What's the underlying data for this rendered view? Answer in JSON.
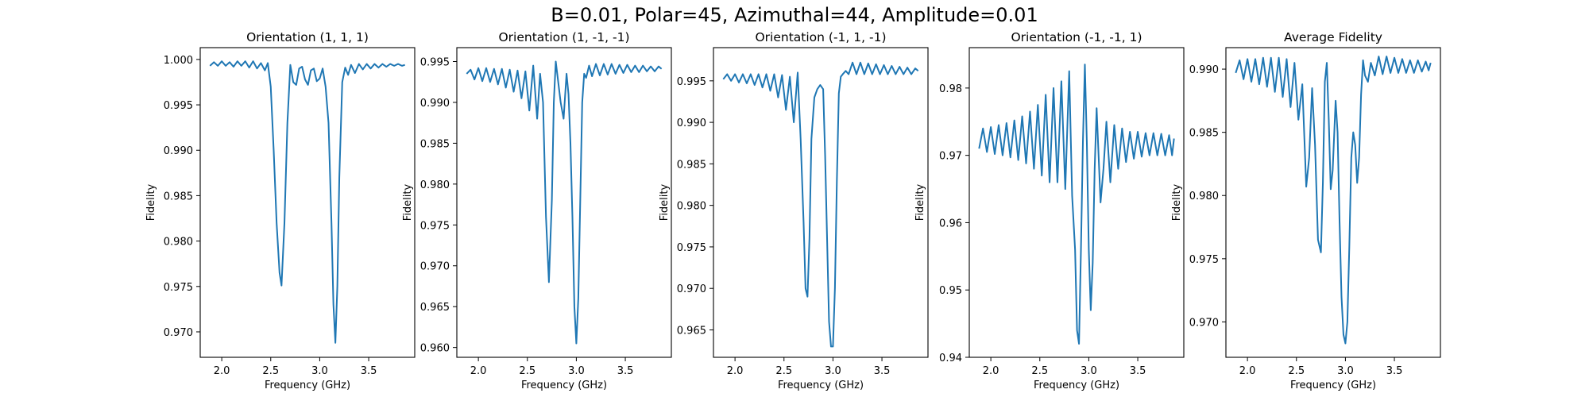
{
  "figure": {
    "suptitle": "B=0.01, Polar=45, Azimuthal=44, Amplitude=0.01"
  },
  "colors": {
    "line": "#1f77b4",
    "axes": "#000000"
  },
  "chart_data": [
    {
      "type": "line",
      "title": "Orientation (1, 1, 1)",
      "xlabel": "Frequency (GHz)",
      "ylabel": "Fidelity",
      "xlim": [
        1.78,
        3.97
      ],
      "ylim": [
        0.9672,
        1.0013
      ],
      "xticks": [
        2.0,
        2.5,
        3.0,
        3.5
      ],
      "xtick_labels": [
        "2.0",
        "2.5",
        "3.0",
        "3.5"
      ],
      "yticks": [
        0.97,
        0.975,
        0.98,
        0.985,
        0.99,
        0.995,
        1.0
      ],
      "ytick_labels": [
        "0.970",
        "0.975",
        "0.980",
        "0.985",
        "0.990",
        "0.995",
        "1.000"
      ],
      "grid": false,
      "series": [
        {
          "x": [
            1.88,
            1.92,
            1.96,
            2.0,
            2.04,
            2.08,
            2.12,
            2.16,
            2.2,
            2.24,
            2.28,
            2.32,
            2.36,
            2.4,
            2.44,
            2.47,
            2.5,
            2.53,
            2.56,
            2.59,
            2.61,
            2.64,
            2.67,
            2.7,
            2.73,
            2.76,
            2.79,
            2.82,
            2.85,
            2.88,
            2.91,
            2.94,
            2.97,
            3.0,
            3.03,
            3.06,
            3.09,
            3.12,
            3.14,
            3.16,
            3.18,
            3.2,
            3.23,
            3.26,
            3.29,
            3.32,
            3.36,
            3.4,
            3.44,
            3.48,
            3.52,
            3.56,
            3.6,
            3.64,
            3.68,
            3.72,
            3.76,
            3.8,
            3.84,
            3.87
          ],
          "y": [
            0.9993,
            0.9997,
            0.9993,
            0.9998,
            0.9993,
            0.9997,
            0.9992,
            0.9998,
            0.9993,
            0.9998,
            0.9991,
            0.9998,
            0.999,
            0.9996,
            0.9988,
            0.9996,
            0.997,
            0.99,
            0.982,
            0.9765,
            0.9751,
            0.982,
            0.993,
            0.9994,
            0.9975,
            0.9972,
            0.999,
            0.9992,
            0.9978,
            0.9972,
            0.9988,
            0.999,
            0.9976,
            0.9979,
            0.999,
            0.997,
            0.993,
            0.982,
            0.973,
            0.9688,
            0.975,
            0.987,
            0.9975,
            0.9991,
            0.9983,
            0.9994,
            0.9985,
            0.9995,
            0.9989,
            0.9995,
            0.999,
            0.9995,
            0.9991,
            0.9995,
            0.9992,
            0.9995,
            0.9993,
            0.9995,
            0.9993,
            0.9994
          ]
        }
      ]
    },
    {
      "type": "line",
      "title": "Orientation (1, -1, -1)",
      "xlabel": "Frequency (GHz)",
      "ylabel": "Fidelity",
      "xlim": [
        1.78,
        3.97
      ],
      "ylim": [
        0.9588,
        0.9967
      ],
      "xticks": [
        2.0,
        2.5,
        3.0,
        3.5
      ],
      "xtick_labels": [
        "2.0",
        "2.5",
        "3.0",
        "3.5"
      ],
      "yticks": [
        0.96,
        0.965,
        0.97,
        0.975,
        0.98,
        0.985,
        0.99,
        0.995
      ],
      "ytick_labels": [
        "0.960",
        "0.965",
        "0.970",
        "0.975",
        "0.980",
        "0.985",
        "0.990",
        "0.995"
      ],
      "grid": false,
      "series": [
        {
          "x": [
            1.88,
            1.92,
            1.96,
            2.0,
            2.04,
            2.08,
            2.12,
            2.16,
            2.2,
            2.24,
            2.28,
            2.32,
            2.36,
            2.4,
            2.44,
            2.48,
            2.52,
            2.56,
            2.6,
            2.63,
            2.66,
            2.69,
            2.72,
            2.75,
            2.77,
            2.79,
            2.81,
            2.84,
            2.87,
            2.9,
            2.92,
            2.94,
            2.96,
            2.98,
            3.0,
            3.02,
            3.04,
            3.06,
            3.08,
            3.1,
            3.13,
            3.16,
            3.2,
            3.24,
            3.28,
            3.32,
            3.36,
            3.4,
            3.44,
            3.48,
            3.52,
            3.56,
            3.6,
            3.64,
            3.68,
            3.72,
            3.76,
            3.8,
            3.84,
            3.87
          ],
          "y": [
            0.9935,
            0.994,
            0.9928,
            0.9942,
            0.9926,
            0.9942,
            0.9925,
            0.9941,
            0.9922,
            0.9941,
            0.9918,
            0.994,
            0.9913,
            0.9939,
            0.9905,
            0.9938,
            0.989,
            0.9945,
            0.988,
            0.9935,
            0.99,
            0.976,
            0.968,
            0.978,
            0.99,
            0.995,
            0.993,
            0.99,
            0.988,
            0.9935,
            0.991,
            0.985,
            0.976,
            0.965,
            0.9605,
            0.966,
            0.978,
            0.99,
            0.9935,
            0.993,
            0.9945,
            0.9932,
            0.9947,
            0.9933,
            0.9947,
            0.9934,
            0.9947,
            0.9935,
            0.9946,
            0.9936,
            0.9946,
            0.9937,
            0.9945,
            0.9937,
            0.9945,
            0.9938,
            0.9944,
            0.9938,
            0.9944,
            0.9941
          ]
        }
      ]
    },
    {
      "type": "line",
      "title": "Orientation (-1, 1, -1)",
      "xlabel": "Frequency (GHz)",
      "ylabel": "Fidelity",
      "xlim": [
        1.78,
        3.97
      ],
      "ylim": [
        0.9617,
        0.999
      ],
      "xticks": [
        2.0,
        2.5,
        3.0,
        3.5
      ],
      "xtick_labels": [
        "2.0",
        "2.5",
        "3.0",
        "3.5"
      ],
      "yticks": [
        0.965,
        0.97,
        0.975,
        0.98,
        0.985,
        0.99,
        0.995
      ],
      "ytick_labels": [
        "0.965",
        "0.970",
        "0.975",
        "0.980",
        "0.985",
        "0.990",
        "0.995"
      ],
      "grid": false,
      "series": [
        {
          "x": [
            1.88,
            1.92,
            1.96,
            2.0,
            2.04,
            2.08,
            2.12,
            2.16,
            2.2,
            2.24,
            2.28,
            2.32,
            2.36,
            2.4,
            2.44,
            2.48,
            2.52,
            2.56,
            2.6,
            2.64,
            2.67,
            2.7,
            2.72,
            2.74,
            2.76,
            2.78,
            2.81,
            2.84,
            2.87,
            2.9,
            2.92,
            2.94,
            2.96,
            2.98,
            3.0,
            3.02,
            3.04,
            3.06,
            3.08,
            3.1,
            3.13,
            3.16,
            3.2,
            3.24,
            3.28,
            3.32,
            3.36,
            3.4,
            3.44,
            3.48,
            3.52,
            3.56,
            3.6,
            3.64,
            3.68,
            3.72,
            3.76,
            3.8,
            3.84,
            3.87
          ],
          "y": [
            0.9952,
            0.9958,
            0.995,
            0.9958,
            0.9948,
            0.9958,
            0.9947,
            0.9958,
            0.9945,
            0.9958,
            0.9942,
            0.9958,
            0.9938,
            0.9958,
            0.993,
            0.9957,
            0.9915,
            0.9955,
            0.99,
            0.996,
            0.988,
            0.978,
            0.97,
            0.969,
            0.976,
            0.988,
            0.993,
            0.994,
            0.9945,
            0.994,
            0.986,
            0.976,
            0.966,
            0.963,
            0.963,
            0.97,
            0.983,
            0.9935,
            0.9955,
            0.9958,
            0.9962,
            0.9958,
            0.9972,
            0.9958,
            0.9972,
            0.9958,
            0.9971,
            0.9958,
            0.997,
            0.9958,
            0.9969,
            0.9958,
            0.9968,
            0.9958,
            0.9967,
            0.9958,
            0.9966,
            0.9958,
            0.9965,
            0.9962
          ]
        }
      ]
    },
    {
      "type": "line",
      "title": "Orientation (-1, -1, 1)",
      "xlabel": "Frequency (GHz)",
      "ylabel": "Fidelity",
      "xlim": [
        1.78,
        3.97
      ],
      "ylim": [
        0.94,
        0.986
      ],
      "xticks": [
        2.0,
        2.5,
        3.0,
        3.5
      ],
      "xtick_labels": [
        "2.0",
        "2.5",
        "3.0",
        "3.5"
      ],
      "yticks": [
        0.94,
        0.95,
        0.96,
        0.97,
        0.98
      ],
      "ytick_labels": [
        "0.94",
        "0.95",
        "0.96",
        "0.97",
        "0.98"
      ],
      "grid": false,
      "series": [
        {
          "x": [
            1.88,
            1.92,
            1.96,
            2.0,
            2.04,
            2.08,
            2.12,
            2.16,
            2.2,
            2.24,
            2.28,
            2.32,
            2.36,
            2.4,
            2.44,
            2.48,
            2.52,
            2.56,
            2.6,
            2.64,
            2.68,
            2.72,
            2.76,
            2.8,
            2.83,
            2.86,
            2.88,
            2.9,
            2.92,
            2.94,
            2.96,
            2.98,
            3.0,
            3.02,
            3.04,
            3.06,
            3.08,
            3.1,
            3.12,
            3.15,
            3.18,
            3.22,
            3.26,
            3.3,
            3.34,
            3.38,
            3.42,
            3.46,
            3.5,
            3.54,
            3.58,
            3.62,
            3.66,
            3.7,
            3.74,
            3.78,
            3.82,
            3.85,
            3.87
          ],
          "y": [
            0.971,
            0.974,
            0.9705,
            0.9742,
            0.9702,
            0.9745,
            0.97,
            0.9748,
            0.9697,
            0.9752,
            0.9693,
            0.9758,
            0.9688,
            0.9765,
            0.968,
            0.9775,
            0.967,
            0.979,
            0.966,
            0.98,
            0.966,
            0.981,
            0.965,
            0.9825,
            0.964,
            0.956,
            0.944,
            0.942,
            0.956,
            0.972,
            0.9835,
            0.972,
            0.956,
            0.947,
            0.954,
            0.968,
            0.977,
            0.97,
            0.963,
            0.968,
            0.975,
            0.966,
            0.9745,
            0.968,
            0.974,
            0.969,
            0.9735,
            0.9695,
            0.9735,
            0.9698,
            0.9733,
            0.97,
            0.9733,
            0.97,
            0.9732,
            0.97,
            0.973,
            0.97,
            0.9725
          ]
        }
      ]
    },
    {
      "type": "line",
      "title": "Average Fidelity",
      "xlabel": "Frequency (GHz)",
      "ylabel": "Fidelity",
      "xlim": [
        1.78,
        3.97
      ],
      "ylim": [
        0.9672,
        0.9917
      ],
      "xticks": [
        2.0,
        2.5,
        3.0,
        3.5
      ],
      "xtick_labels": [
        "2.0",
        "2.5",
        "3.0",
        "3.5"
      ],
      "yticks": [
        0.97,
        0.975,
        0.98,
        0.985,
        0.99
      ],
      "ytick_labels": [
        "0.970",
        "0.975",
        "0.980",
        "0.985",
        "0.990"
      ],
      "grid": false,
      "series": [
        {
          "x": [
            1.88,
            1.92,
            1.96,
            2.0,
            2.04,
            2.08,
            2.12,
            2.16,
            2.2,
            2.24,
            2.28,
            2.32,
            2.36,
            2.4,
            2.44,
            2.48,
            2.52,
            2.56,
            2.6,
            2.63,
            2.66,
            2.69,
            2.72,
            2.75,
            2.77,
            2.79,
            2.81,
            2.83,
            2.85,
            2.87,
            2.9,
            2.92,
            2.94,
            2.96,
            2.98,
            3.0,
            3.02,
            3.04,
            3.06,
            3.08,
            3.1,
            3.12,
            3.14,
            3.16,
            3.18,
            3.2,
            3.23,
            3.26,
            3.3,
            3.34,
            3.38,
            3.42,
            3.46,
            3.5,
            3.54,
            3.58,
            3.62,
            3.66,
            3.7,
            3.74,
            3.78,
            3.82,
            3.85,
            3.87
          ],
          "y": [
            0.9897,
            0.9907,
            0.9892,
            0.9908,
            0.989,
            0.9908,
            0.9888,
            0.9909,
            0.9886,
            0.9909,
            0.9882,
            0.9909,
            0.9878,
            0.9908,
            0.987,
            0.9905,
            0.986,
            0.9888,
            0.9807,
            0.983,
            0.9885,
            0.984,
            0.9765,
            0.9755,
            0.981,
            0.989,
            0.9905,
            0.986,
            0.9805,
            0.982,
            0.9875,
            0.985,
            0.978,
            0.972,
            0.969,
            0.9683,
            0.97,
            0.976,
            0.983,
            0.985,
            0.984,
            0.981,
            0.983,
            0.988,
            0.9907,
            0.9895,
            0.989,
            0.9905,
            0.9895,
            0.991,
            0.9896,
            0.991,
            0.9897,
            0.9909,
            0.9897,
            0.9908,
            0.9897,
            0.9907,
            0.9897,
            0.9907,
            0.9898,
            0.9906,
            0.9899,
            0.9905
          ]
        }
      ]
    }
  ]
}
